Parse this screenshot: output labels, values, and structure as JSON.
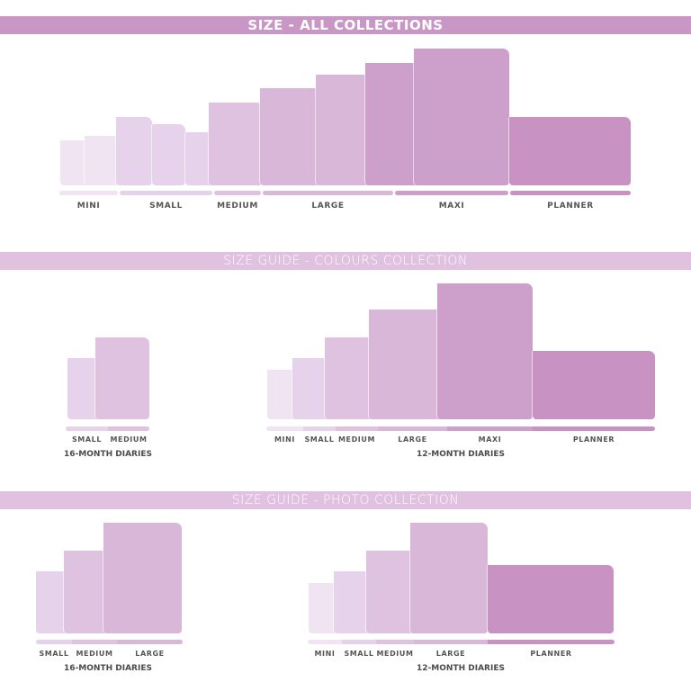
{
  "colors": {
    "mini": "#f0e4f3",
    "small": "#e6d2ea",
    "medium": "#dfc1e0",
    "large": "#d9b7d8",
    "maxi": "#cda0cb",
    "planner": "#c893c2",
    "header_primary": "#c997c6",
    "header_secondary": "#e0c1e0"
  },
  "sections": [
    {
      "header": "SIZE - ALL COLLECTIONS",
      "groups": [
        {
          "title": "",
          "sizes": [
            "MINI",
            "SMALL",
            "MEDIUM",
            "LARGE",
            "MAXI",
            "PLANNER"
          ]
        }
      ]
    },
    {
      "header": "SIZE GUIDE - COLOURS COLLECTION",
      "groups": [
        {
          "title": "16-MONTH DIARIES",
          "sizes": [
            "SMALL",
            "MEDIUM"
          ]
        },
        {
          "title": "12-MONTH DIARIES",
          "sizes": [
            "MINI",
            "SMALL",
            "MEDIUM",
            "LARGE",
            "MAXI",
            "PLANNER"
          ]
        }
      ]
    },
    {
      "header": "SIZE GUIDE - PHOTO COLLECTION",
      "groups": [
        {
          "title": "16-MONTH DIARIES",
          "sizes": [
            "SMALL",
            "MEDIUM",
            "LARGE"
          ]
        },
        {
          "title": "12-MONTH DIARIES",
          "sizes": [
            "MINI",
            "SMALL",
            "MEDIUM",
            "LARGE",
            "PLANNER"
          ]
        }
      ]
    }
  ]
}
